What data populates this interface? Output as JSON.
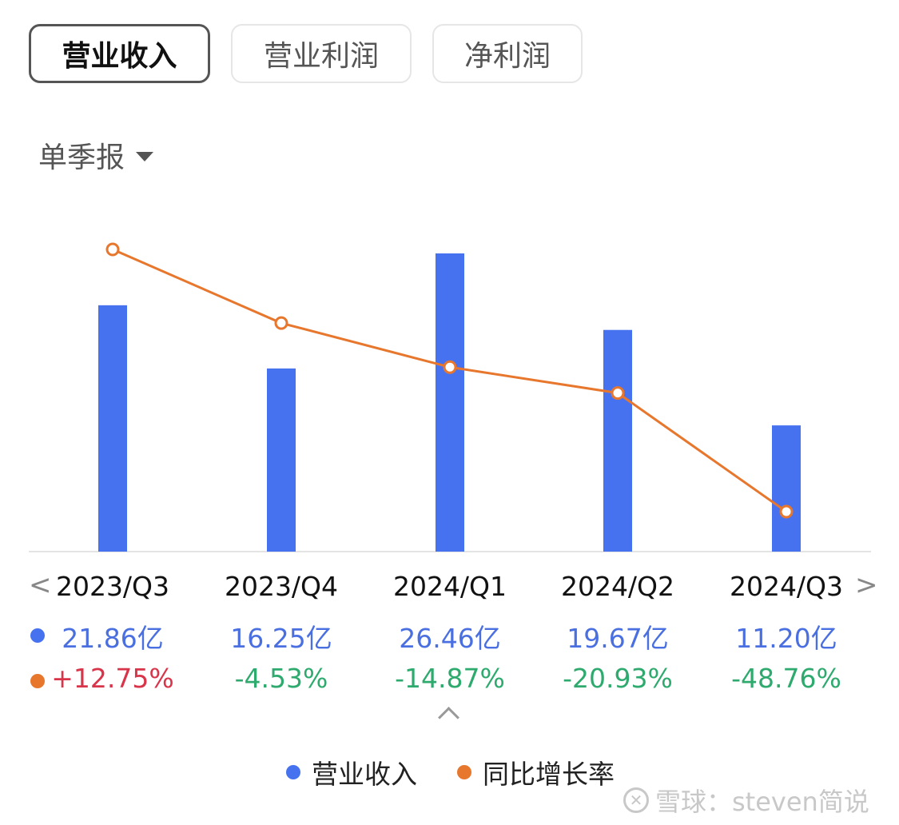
{
  "tabs": [
    {
      "label": "营业收入",
      "active": true
    },
    {
      "label": "营业利润",
      "active": false
    },
    {
      "label": "净利润",
      "active": false
    }
  ],
  "period_selector": {
    "label": "单季报",
    "icon": "caret-down-icon"
  },
  "nav": {
    "prev": "<",
    "next": ">"
  },
  "colors": {
    "bar": "#4672f0",
    "line": "#e8772e",
    "positive": "#d8344a",
    "negative": "#2eaa6e",
    "value_text": "#4a6fe0"
  },
  "chart_data": {
    "type": "bar",
    "categories": [
      "2023/Q3",
      "2023/Q4",
      "2024/Q1",
      "2024/Q2",
      "2024/Q3"
    ],
    "series": [
      {
        "name": "营业收入",
        "type": "bar",
        "values": [
          21.86,
          16.25,
          26.46,
          19.67,
          11.2
        ],
        "labels": [
          "21.86亿",
          "16.25亿",
          "26.46亿",
          "19.67亿",
          "11.20亿"
        ]
      },
      {
        "name": "同比增长率",
        "type": "line",
        "values": [
          12.75,
          -4.53,
          -14.87,
          -20.93,
          -48.76
        ],
        "labels": [
          "+12.75%",
          "-4.53%",
          "-14.87%",
          "-20.93%",
          "-48.76%"
        ]
      }
    ],
    "legend": [
      "营业收入",
      "同比增长率"
    ],
    "legend_position": "bottom",
    "grid": false
  },
  "watermark": "雪球：steven简说"
}
